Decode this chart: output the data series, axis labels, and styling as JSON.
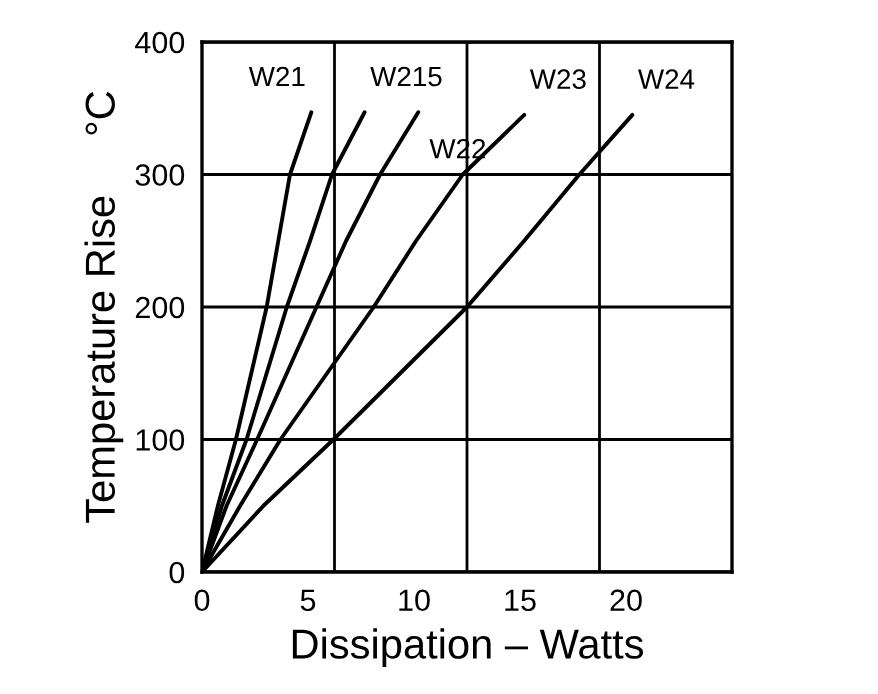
{
  "chart_data": {
    "type": "line",
    "xlabel": "Dissipation – Watts",
    "ylabel": "Temperature Rise     °C",
    "xlim": [
      0,
      25
    ],
    "ylim": [
      0,
      400
    ],
    "xticks": [
      0,
      5,
      10,
      15,
      20
    ],
    "yticks": [
      0,
      100,
      200,
      300,
      400
    ],
    "grid": "y",
    "ref_lines": [
      {
        "axis": "x",
        "value": 6.25,
        "label": null
      },
      {
        "axis": "x",
        "value": 12.5,
        "label": null
      },
      {
        "axis": "x",
        "value": 18.75,
        "label": null
      }
    ],
    "series": [
      {
        "name": "W21",
        "color": "#000000",
        "x": [
          0,
          0.75,
          1.6,
          3.05,
          3.6,
          4.15,
          5.16
        ],
        "values": [
          0,
          50,
          100,
          200,
          250,
          300,
          347
        ]
      },
      {
        "name": "W215",
        "color": "#000000",
        "x": [
          0,
          0.94,
          2.1,
          4.0,
          5.1,
          6.13,
          7.67
        ],
        "values": [
          0,
          50,
          100,
          200,
          250,
          300,
          347
        ]
      },
      {
        "name": "W22",
        "color": "#000000",
        "x": [
          0,
          1.16,
          2.6,
          5.4,
          6.8,
          8.4,
          10.2
        ],
        "values": [
          0,
          50,
          100,
          200,
          250,
          300,
          347
        ]
      },
      {
        "name": "W23",
        "color": "#000000",
        "x": [
          0,
          1.8,
          3.7,
          8.1,
          10.1,
          12.3,
          15.2
        ],
        "values": [
          0,
          50,
          100,
          200,
          250,
          300,
          345
        ]
      },
      {
        "name": "W24",
        "color": "#000000",
        "x": [
          0,
          2.9,
          6.2,
          12.5,
          15.2,
          17.8,
          20.3
        ],
        "values": [
          0,
          50,
          100,
          200,
          250,
          300,
          345
        ]
      }
    ]
  }
}
